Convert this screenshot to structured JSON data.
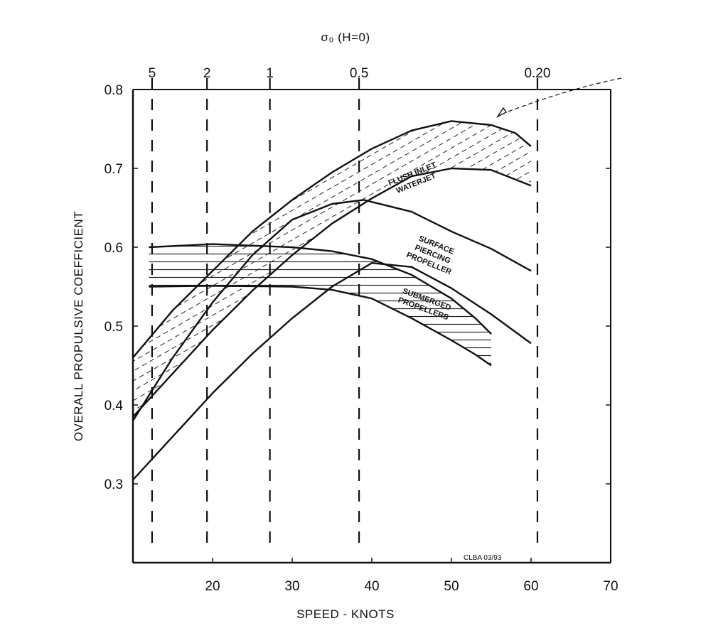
{
  "chart_data": {
    "type": "line",
    "xlabel": "SPEED - KNOTS",
    "ylabel": "OVERALL PROPULSIVE COEFFICIENT",
    "top_axis_label": "σ₀ (H=0)",
    "xlim": [
      10,
      70
    ],
    "ylim": [
      0.2,
      0.8
    ],
    "x_ticks": [
      20,
      30,
      40,
      50,
      60,
      70
    ],
    "y_ticks": [
      0.3,
      0.4,
      0.5,
      0.6,
      0.7,
      0.8
    ],
    "top_ticks": [
      {
        "label": "5",
        "x": 12.4
      },
      {
        "label": "2",
        "x": 19.3
      },
      {
        "label": "1",
        "x": 27.2
      },
      {
        "label": "0.5",
        "x": 38.4
      },
      {
        "label": "0.20",
        "x": 60.8
      }
    ],
    "grid": false,
    "series": [
      {
        "name": "FLUSH INLET WATERJET",
        "role": "upper",
        "points": [
          [
            10,
            0.46
          ],
          [
            15,
            0.52
          ],
          [
            20,
            0.57
          ],
          [
            25,
            0.62
          ],
          [
            30,
            0.66
          ],
          [
            35,
            0.695
          ],
          [
            40,
            0.725
          ],
          [
            45,
            0.748
          ],
          [
            50,
            0.76
          ],
          [
            55,
            0.755
          ],
          [
            58,
            0.745
          ],
          [
            60,
            0.728
          ]
        ]
      },
      {
        "name": "FLUSH INLET WATERJET",
        "role": "lower",
        "points": [
          [
            10,
            0.385
          ],
          [
            15,
            0.44
          ],
          [
            20,
            0.495
          ],
          [
            25,
            0.545
          ],
          [
            30,
            0.59
          ],
          [
            35,
            0.63
          ],
          [
            40,
            0.662
          ],
          [
            45,
            0.69
          ],
          [
            50,
            0.7
          ],
          [
            55,
            0.698
          ],
          [
            60,
            0.678
          ]
        ]
      },
      {
        "name": "SURFACE PIERCING PROPELLER",
        "role": "upper",
        "points": [
          [
            10,
            0.38
          ],
          [
            15,
            0.46
          ],
          [
            20,
            0.53
          ],
          [
            25,
            0.59
          ],
          [
            30,
            0.635
          ],
          [
            35,
            0.655
          ],
          [
            39,
            0.66
          ],
          [
            45,
            0.645
          ],
          [
            50,
            0.62
          ],
          [
            55,
            0.598
          ],
          [
            60,
            0.57
          ]
        ]
      },
      {
        "name": "SURFACE PIERCING PROPELLER",
        "role": "lower",
        "points": [
          [
            10,
            0.305
          ],
          [
            15,
            0.36
          ],
          [
            20,
            0.415
          ],
          [
            25,
            0.465
          ],
          [
            30,
            0.51
          ],
          [
            35,
            0.55
          ],
          [
            40,
            0.58
          ],
          [
            45,
            0.575
          ],
          [
            50,
            0.548
          ],
          [
            55,
            0.515
          ],
          [
            60,
            0.478
          ]
        ]
      },
      {
        "name": "SUBMERGED PROPELLERS",
        "role": "upper",
        "points": [
          [
            12,
            0.6
          ],
          [
            20,
            0.604
          ],
          [
            30,
            0.6
          ],
          [
            35,
            0.595
          ],
          [
            40,
            0.585
          ],
          [
            45,
            0.565
          ],
          [
            50,
            0.535
          ],
          [
            53,
            0.51
          ],
          [
            55,
            0.49
          ]
        ]
      },
      {
        "name": "SUBMERGED PROPELLERS",
        "role": "lower",
        "points": [
          [
            12,
            0.55
          ],
          [
            20,
            0.551
          ],
          [
            30,
            0.55
          ],
          [
            35,
            0.546
          ],
          [
            40,
            0.535
          ],
          [
            45,
            0.51
          ],
          [
            50,
            0.482
          ],
          [
            53,
            0.464
          ],
          [
            55,
            0.45
          ]
        ]
      }
    ],
    "labels": [
      {
        "text": [
          "FLUSH INLET",
          "WATERJET"
        ],
        "x": 45.2,
        "y": 0.69,
        "rotate": -22
      },
      {
        "text": [
          "SURFACE",
          "PIERCING",
          "PROPELLER"
        ],
        "x": 48,
        "y": 0.6,
        "rotate": 22
      },
      {
        "text": [
          "SUBMERGED",
          "PROPELLERS"
        ],
        "x": 46.8,
        "y": 0.531,
        "rotate": 20
      }
    ],
    "credit": "CLBA 03/93"
  }
}
